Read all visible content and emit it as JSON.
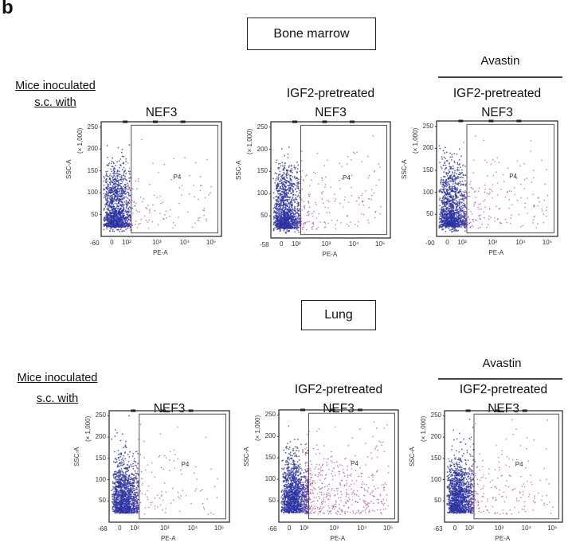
{
  "figure_label": "b",
  "colors": {
    "main_population": "#2b32a0",
    "gated_population": "#b0478f",
    "axis": "#333333"
  },
  "rows": [
    {
      "tissue": "Bone marrow",
      "avastin_label": "Avastin",
      "mice_label_line1": "Mice inoculated",
      "mice_label_line2": "s.c. with",
      "plots": [
        {
          "title_lines": [
            "",
            "NEF3"
          ],
          "x_min_label": "-60"
        },
        {
          "title_lines": [
            "IGF2-pretreated",
            "NEF3"
          ],
          "x_min_label": "-58"
        },
        {
          "title_lines": [
            "IGF2-pretreated",
            "NEF3"
          ],
          "x_min_label": "-90"
        }
      ]
    },
    {
      "tissue": "Lung",
      "avastin_label": "Avastin",
      "mice_label_line1": "Mice inoculated",
      "mice_label_line2": "s.c. with",
      "plots": [
        {
          "title_lines": [
            "",
            "NEF3"
          ],
          "x_min_label": "-68"
        },
        {
          "title_lines": [
            "IGF2-pretreated",
            "NEF3"
          ],
          "x_min_label": "-66"
        },
        {
          "title_lines": [
            "IGF2-pretreated",
            "NEF3"
          ],
          "x_min_label": "-63"
        }
      ]
    }
  ],
  "axes": {
    "y_label": "SSC-A",
    "y_unit": "(× 1,000)",
    "y_ticks": [
      "250",
      "200",
      "150",
      "100",
      "50"
    ],
    "x_label": "PE-A",
    "x_ticks": [
      "0",
      "10²",
      "10³",
      "10⁴",
      "10⁵"
    ],
    "gate_label": "P4"
  }
}
